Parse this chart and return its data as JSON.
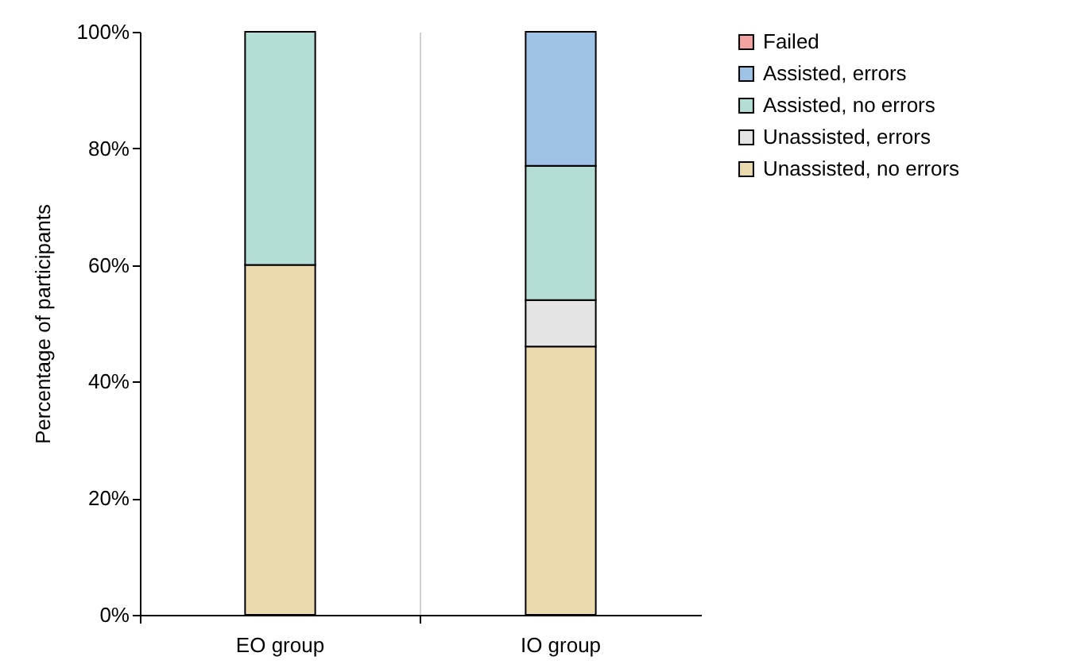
{
  "chart_data": {
    "type": "bar",
    "stacked": true,
    "ylabel": "Percentage of participants",
    "categories": [
      "EO group",
      "IO group"
    ],
    "series": [
      {
        "name": "Unassisted, no errors",
        "color": "#ecdaaf",
        "values": [
          60,
          46
        ]
      },
      {
        "name": "Unassisted, errors",
        "color": "#e4e4e4",
        "values": [
          null,
          8
        ]
      },
      {
        "name": "Assisted, no errors",
        "color": "#b4ded5",
        "values": [
          40,
          23
        ]
      },
      {
        "name": "Assisted, errors",
        "color": "#9fc3e7",
        "values": [
          null,
          23
        ]
      },
      {
        "name": "Failed",
        "color": "#f4a3a3",
        "values": [
          null,
          null
        ]
      }
    ],
    "ylim": [
      0,
      100
    ],
    "yticks": [
      {
        "value": 0,
        "label": "0%"
      },
      {
        "value": 20,
        "label": "20%"
      },
      {
        "value": 40,
        "label": "40%"
      },
      {
        "value": 60,
        "label": "60%"
      },
      {
        "value": 80,
        "label": "80%"
      },
      {
        "value": 100,
        "label": "100%"
      }
    ],
    "grid": "x",
    "legend": "right"
  }
}
